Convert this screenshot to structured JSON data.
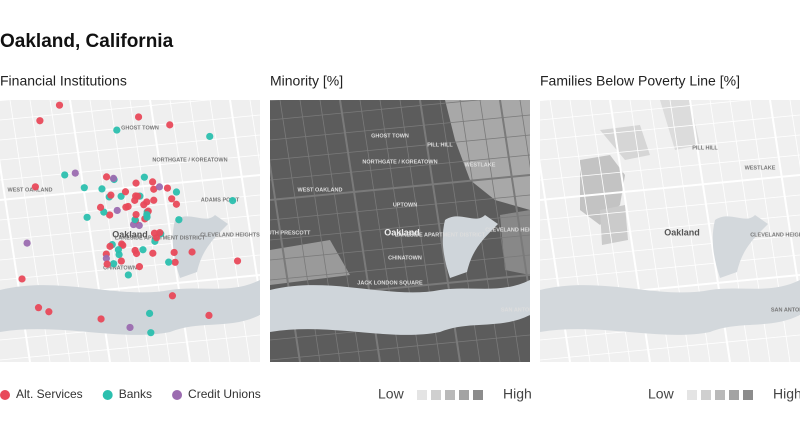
{
  "title": "Oakland, California",
  "panels": [
    {
      "title": "Financial Institutions",
      "legend": [
        {
          "name": "Alt. Services",
          "color": "#e8495a"
        },
        {
          "name": "Banks",
          "color": "#2bbfae"
        },
        {
          "name": "Credit Unions",
          "color": "#9b6bb0"
        }
      ],
      "map_labels": [
        "GHOST TOWN",
        "NORTHGATE / KOREATOWN",
        "WEST OAKLAND",
        "ADAMS POINT",
        "LAKESIDE APARTMENT DISTRICT",
        "CLEVELAND HEIGHTS",
        "CHINATOWN",
        "Oakland"
      ]
    },
    {
      "title": "Minority [%]",
      "legend_low": "Low",
      "legend_high": "High",
      "map_labels": [
        "GHOST TOWN",
        "PILL HILL",
        "NORTHGATE / KOREATOWN",
        "WESTLAKE",
        "WEST OAKLAND",
        "UPTOWN",
        "Oakland",
        "LAKESIDE APARTMENT DISTRICT",
        "CLEVELAND HEIGHTS",
        "CHINATOWN",
        "JACK LONDON SQUARE",
        "SOUTH PRESCOTT",
        "SAN ANTONIO"
      ]
    },
    {
      "title": "Families Below Poverty Line [%]",
      "legend_low": "Low",
      "legend_high": "High",
      "map_labels": [
        "PILL HILL",
        "WESTLAKE",
        "Oakland",
        "CLEVELAND HEIGHTS",
        "SAN ANTONIO"
      ]
    }
  ]
}
